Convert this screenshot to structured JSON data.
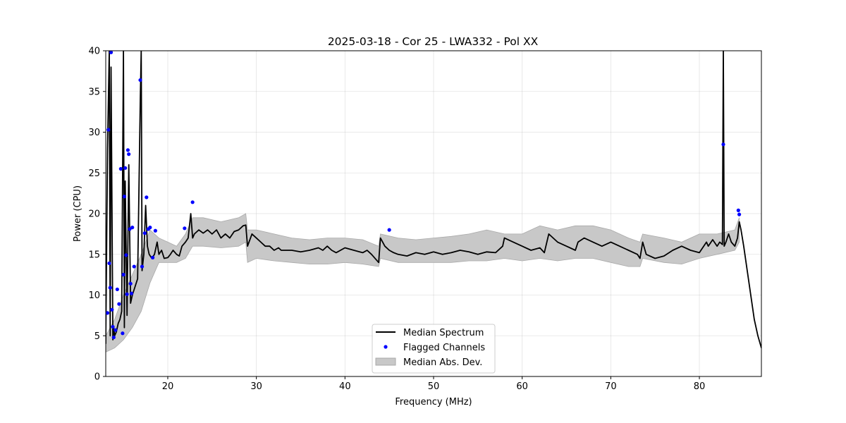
{
  "chart_data": {
    "type": "line",
    "title": "2025-03-18 - Cor 25 - LWA332 - Pol XX",
    "xlabel": "Frequency (MHz)",
    "ylabel": "Power (CPU)",
    "xlim": [
      13.0,
      87.0
    ],
    "ylim": [
      0,
      40
    ],
    "xticks": [
      20,
      30,
      40,
      50,
      60,
      70,
      80
    ],
    "yticks": [
      0,
      5,
      10,
      15,
      20,
      25,
      30,
      35,
      40
    ],
    "grid": true,
    "legend_position": "bottom-center",
    "legend": [
      "Median Spectrum",
      "Flagged Channels",
      "Median Abs. Dev."
    ],
    "colors": {
      "median": "#000000",
      "flagged": "#0000ff",
      "mad": "#c8c8c8",
      "mad_edge": "#a9a9a9"
    },
    "series": [
      {
        "name": "Median Spectrum",
        "style": "line",
        "x": [
          13.0,
          13.2,
          13.4,
          13.5,
          13.6,
          13.8,
          13.9,
          14.0,
          14.2,
          14.4,
          14.6,
          14.8,
          15.0,
          15.1,
          15.2,
          15.4,
          15.6,
          15.8,
          16.0,
          16.3,
          16.6,
          16.9,
          17.0,
          17.1,
          17.3,
          17.5,
          17.7,
          17.9,
          18.2,
          18.5,
          18.8,
          19.0,
          19.3,
          19.6,
          20.0,
          20.3,
          20.6,
          21.0,
          21.3,
          21.6,
          22.0,
          22.3,
          22.6,
          22.8,
          23.0,
          23.5,
          24.0,
          24.5,
          25.0,
          25.5,
          26.0,
          26.5,
          27.0,
          27.5,
          28.0,
          28.5,
          28.8,
          29.0,
          29.5,
          30.0,
          30.5,
          31.0,
          31.5,
          32.0,
          32.5,
          32.8,
          33.0,
          34.0,
          35.0,
          36.0,
          37.0,
          37.5,
          38.0,
          38.5,
          39.0,
          40.0,
          41.0,
          42.0,
          42.5,
          43.0,
          43.8,
          44.0,
          44.5,
          45.0,
          45.5,
          46.0,
          47.0,
          48.0,
          49.0,
          50.0,
          51.0,
          52.0,
          53.0,
          54.0,
          55.0,
          56.0,
          57.0,
          57.8,
          58.0,
          59.0,
          60.0,
          61.0,
          62.0,
          62.5,
          63.0,
          64.0,
          65.0,
          66.0,
          66.3,
          67.0,
          68.0,
          69.0,
          70.0,
          71.0,
          72.0,
          73.0,
          73.3,
          73.6,
          74.0,
          75.0,
          76.0,
          77.0,
          78.0,
          79.0,
          80.0,
          80.8,
          81.0,
          81.5,
          82.0,
          82.3,
          82.6,
          82.7,
          82.8,
          83.0,
          83.3,
          83.6,
          84.0,
          84.3,
          84.5,
          84.7,
          85.0,
          85.4,
          85.8,
          86.2,
          86.6,
          87.0
        ],
        "y": [
          4.0,
          28.0,
          40.0,
          5.0,
          38.0,
          4.5,
          6.0,
          5.0,
          5.5,
          6.5,
          7.0,
          8.0,
          40.0,
          6.0,
          24.0,
          7.5,
          26.0,
          9.0,
          10.0,
          11.0,
          12.0,
          34.0,
          40.0,
          13.0,
          15.0,
          21.0,
          16.0,
          15.0,
          14.5,
          15.0,
          16.5,
          15.0,
          15.5,
          14.5,
          14.6,
          15.0,
          15.5,
          15.0,
          14.8,
          16.0,
          16.5,
          17.0,
          20.0,
          17.0,
          17.5,
          18.0,
          17.6,
          18.0,
          17.5,
          18.0,
          17.0,
          17.5,
          17.0,
          17.8,
          18.0,
          18.5,
          18.6,
          16.0,
          17.5,
          17.0,
          16.5,
          16.0,
          16.0,
          15.5,
          15.8,
          15.5,
          15.5,
          15.5,
          15.3,
          15.5,
          15.8,
          15.5,
          16.0,
          15.5,
          15.2,
          15.8,
          15.5,
          15.2,
          15.5,
          15.0,
          14.0,
          17.0,
          16.0,
          15.5,
          15.2,
          15.0,
          14.8,
          15.2,
          15.0,
          15.3,
          15.0,
          15.2,
          15.5,
          15.3,
          15.0,
          15.3,
          15.2,
          16.0,
          17.0,
          16.5,
          16.0,
          15.5,
          15.8,
          15.2,
          17.5,
          16.5,
          16.0,
          15.5,
          16.5,
          17.0,
          16.5,
          16.0,
          16.5,
          16.0,
          15.5,
          15.0,
          14.5,
          16.5,
          15.0,
          14.5,
          14.8,
          15.5,
          16.0,
          15.5,
          15.2,
          16.5,
          16.0,
          16.8,
          16.0,
          16.5,
          16.2,
          40.0,
          16.0,
          16.5,
          17.5,
          16.5,
          16.0,
          17.0,
          19.0,
          18.0,
          16.0,
          13.0,
          10.0,
          7.0,
          5.0,
          3.5
        ]
      },
      {
        "name": "Flagged Channels",
        "style": "points",
        "x": [
          13.2,
          13.3,
          13.4,
          13.5,
          13.6,
          13.7,
          13.8,
          13.9,
          14.1,
          14.3,
          14.5,
          14.7,
          14.9,
          15.0,
          15.1,
          15.2,
          15.3,
          15.4,
          15.5,
          15.6,
          15.7,
          15.8,
          15.9,
          16.0,
          16.2,
          16.9,
          17.1,
          17.4,
          17.6,
          17.8,
          18.0,
          18.3,
          18.6,
          21.9,
          22.8,
          45.0,
          82.7,
          84.4,
          84.5
        ],
        "y": [
          7.8,
          30.3,
          13.9,
          10.9,
          39.8,
          8.2,
          6.1,
          4.8,
          5.7,
          10.7,
          8.9,
          25.5,
          5.3,
          12.5,
          22.1,
          25.6,
          14.9,
          10.1,
          27.8,
          27.3,
          18.1,
          11.4,
          10.2,
          18.3,
          13.5,
          36.4,
          13.5,
          17.6,
          22.0,
          18.1,
          18.3,
          14.6,
          17.9,
          18.2,
          21.4,
          18.0,
          28.5,
          20.4,
          19.9
        ]
      },
      {
        "name": "Median Abs. Dev.",
        "style": "band",
        "x": [
          13.0,
          14.0,
          15.0,
          16.0,
          17.0,
          18.0,
          19.0,
          20.0,
          21.0,
          22.0,
          22.8,
          24.0,
          26.0,
          28.0,
          28.8,
          29.0,
          30.0,
          32.0,
          34.0,
          36.0,
          38.0,
          40.0,
          42.0,
          43.8,
          44.0,
          46.0,
          48.0,
          50.0,
          52.0,
          54.0,
          56.0,
          58.0,
          60.0,
          62.0,
          64.0,
          66.0,
          68.0,
          70.0,
          72.0,
          73.3,
          73.6,
          76.0,
          78.0,
          80.0,
          82.0,
          84.0,
          84.5
        ],
        "upper": [
          5.0,
          7.0,
          10.0,
          12.5,
          15.0,
          18.0,
          17.0,
          16.5,
          16.0,
          17.5,
          19.5,
          19.5,
          19.0,
          19.5,
          20.0,
          18.0,
          18.0,
          17.5,
          17.0,
          16.8,
          17.0,
          17.0,
          16.8,
          16.0,
          17.5,
          17.0,
          16.8,
          17.0,
          17.2,
          17.5,
          18.0,
          17.5,
          17.5,
          18.5,
          18.0,
          18.5,
          18.5,
          18.0,
          17.0,
          16.5,
          17.5,
          17.0,
          16.5,
          17.5,
          17.5,
          18.0,
          19.5
        ],
        "lower": [
          3.0,
          3.5,
          4.5,
          6.0,
          8.0,
          11.5,
          14.0,
          14.0,
          14.0,
          14.5,
          16.0,
          16.0,
          15.8,
          16.0,
          16.5,
          14.0,
          14.5,
          14.2,
          14.0,
          13.8,
          13.8,
          14.0,
          13.8,
          13.5,
          14.5,
          14.0,
          14.0,
          14.0,
          14.0,
          14.2,
          14.2,
          14.5,
          14.2,
          14.5,
          14.2,
          14.5,
          14.5,
          14.0,
          13.5,
          13.5,
          14.5,
          14.0,
          13.8,
          14.5,
          15.0,
          15.5,
          16.5
        ]
      }
    ]
  }
}
